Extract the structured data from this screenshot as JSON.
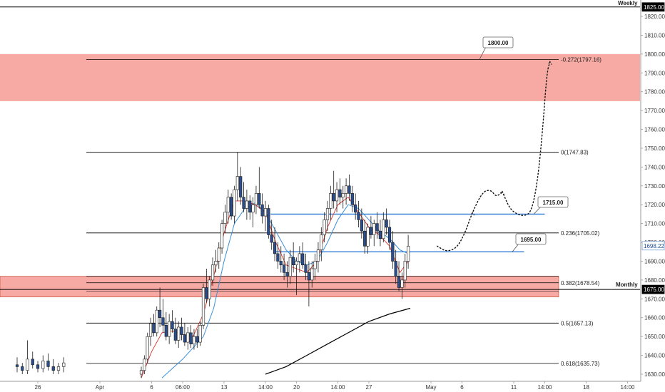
{
  "chart_data": {
    "type": "candlestick",
    "timeframe_labels": {
      "top": "Weekly",
      "middle": "Monthly"
    },
    "y_axis": {
      "ticks": [
        "1820.00",
        "1810.00",
        "1800.00",
        "1790.00",
        "1780.00",
        "1770.00",
        "1760.00",
        "1750.00",
        "1740.00",
        "1730.00",
        "1720.00",
        "1710.00",
        "1700.00",
        "1690.00",
        "1680.00",
        "1670.00",
        "1660.00",
        "1650.00",
        "1640.00",
        "1630.00"
      ],
      "badges": [
        {
          "name": "weekly-price",
          "text": "1825.00",
          "value": 1825,
          "bg": "#000000",
          "fg": "#ffffff"
        },
        {
          "name": "current-price",
          "text": "1698.22",
          "value": 1698.22,
          "bg": "#ffffff",
          "fg": "#1e4f9e",
          "border": "#7ea6d8"
        },
        {
          "name": "monthly-price",
          "text": "1675.00",
          "value": 1675,
          "bg": "#000000",
          "fg": "#ffffff"
        }
      ]
    },
    "x_axis": {
      "ticks": [
        {
          "label": "26",
          "day": -6
        },
        {
          "label": "Apr",
          "day": 0
        },
        {
          "label": "6",
          "day": 5
        },
        {
          "label": "06:00",
          "day": 8
        },
        {
          "label": "13",
          "day": 12
        },
        {
          "label": "14:00",
          "day": 16
        },
        {
          "label": "20",
          "day": 19
        },
        {
          "label": "14:00",
          "day": 23
        },
        {
          "label": "27",
          "day": 26
        },
        {
          "label": "May",
          "day": 32
        },
        {
          "label": "6",
          "day": 35
        },
        {
          "label": "11",
          "day": 40
        },
        {
          "label": "14:00",
          "day": 43
        },
        {
          "label": "18",
          "day": 47
        },
        {
          "label": "14:00",
          "day": 51
        }
      ]
    },
    "zones": [
      {
        "name": "upper-resistance-zone",
        "from": 1775,
        "to": 1800,
        "color": "#f7aaa3"
      },
      {
        "name": "lower-support-zone",
        "from": 1671,
        "to": 1682,
        "color": "#f7aaa3"
      }
    ],
    "levels": [
      {
        "name": "weekly-line",
        "value": 1825,
        "color": "#000000"
      },
      {
        "name": "monthly-line",
        "value": 1675,
        "color": "#000000"
      }
    ],
    "fib_levels": [
      {
        "label": "-0.272(1797.16)",
        "value": 1797.16
      },
      {
        "label": "0(1747.83)",
        "value": 1747.83
      },
      {
        "label": "0.236(1705.02)",
        "value": 1705.02
      },
      {
        "label": "0.382(1678.54)",
        "value": 1678.54
      },
      {
        "label": "0.5(1657.13)",
        "value": 1657.13
      },
      {
        "label": "0.618(1635.73)",
        "value": 1635.73
      }
    ],
    "fib_extra_lines": [
      1682,
      1674
    ],
    "blue_lines": [
      {
        "name": "resistance-1715",
        "value": 1715,
        "label": "1715.00",
        "from_day": 16.5,
        "to_day": 43
      },
      {
        "name": "support-1695",
        "value": 1695,
        "label": "1695.00",
        "from_day": 17,
        "to_day": 41
      }
    ],
    "callouts": [
      {
        "text": "1800.00",
        "value": 1800
      },
      {
        "text": "1715.00",
        "value": 1715
      },
      {
        "text": "1695.00",
        "value": 1695
      }
    ],
    "projection_path": [
      [
        32.6,
        1698
      ],
      [
        33.5,
        1695
      ],
      [
        34.5,
        1697
      ],
      [
        35.3,
        1705
      ],
      [
        36,
        1716
      ],
      [
        37,
        1727
      ],
      [
        37.8,
        1728
      ],
      [
        38.3,
        1724
      ],
      [
        38.9,
        1727
      ]
    ],
    "projection_path2": [
      [
        38.9,
        1727
      ],
      [
        39.6,
        1718
      ],
      [
        40.3,
        1715
      ],
      [
        41,
        1714
      ],
      [
        41.7,
        1716
      ],
      [
        42.3,
        1732
      ],
      [
        42.8,
        1760
      ],
      [
        43.2,
        1790
      ],
      [
        43.5,
        1796
      ]
    ],
    "candles": [
      [
        -8,
        1635,
        1639,
        1631,
        1634
      ],
      [
        -7.5,
        1634,
        1636,
        1630,
        1632
      ],
      [
        -7,
        1632,
        1648,
        1630,
        1638
      ],
      [
        -6.5,
        1638,
        1642,
        1633,
        1635
      ],
      [
        -6,
        1635,
        1637,
        1631,
        1633
      ],
      [
        -5.5,
        1633,
        1640,
        1631,
        1637
      ],
      [
        -5,
        1637,
        1641,
        1632,
        1634
      ],
      [
        -4.5,
        1634,
        1638,
        1630,
        1632
      ],
      [
        -4,
        1632,
        1636,
        1630,
        1634
      ],
      [
        -3.5,
        1634,
        1639,
        1631,
        1636
      ],
      [
        4,
        1630,
        1634,
        1628,
        1632
      ],
      [
        4.3,
        1632,
        1640,
        1630,
        1638
      ],
      [
        4.6,
        1638,
        1652,
        1636,
        1650
      ],
      [
        4.9,
        1650,
        1660,
        1645,
        1657
      ],
      [
        5.2,
        1657,
        1662,
        1650,
        1652
      ],
      [
        5.5,
        1652,
        1666,
        1650,
        1664
      ],
      [
        5.8,
        1664,
        1676,
        1655,
        1660
      ],
      [
        6.1,
        1660,
        1670,
        1652,
        1656
      ],
      [
        6.4,
        1656,
        1663,
        1648,
        1650
      ],
      [
        6.7,
        1650,
        1662,
        1646,
        1658
      ],
      [
        7,
        1658,
        1664,
        1652,
        1654
      ],
      [
        7.3,
        1654,
        1660,
        1646,
        1648
      ],
      [
        7.6,
        1648,
        1658,
        1644,
        1655
      ],
      [
        7.9,
        1655,
        1660,
        1648,
        1651
      ],
      [
        8.2,
        1651,
        1657,
        1645,
        1647
      ],
      [
        8.5,
        1647,
        1655,
        1643,
        1652
      ],
      [
        8.8,
        1652,
        1656,
        1644,
        1646
      ],
      [
        9.1,
        1646,
        1654,
        1643,
        1650
      ],
      [
        9.4,
        1650,
        1654,
        1644,
        1647
      ],
      [
        9.7,
        1647,
        1658,
        1645,
        1656
      ],
      [
        10,
        1656,
        1678,
        1654,
        1676
      ],
      [
        10.3,
        1676,
        1686,
        1668,
        1670
      ],
      [
        10.6,
        1670,
        1682,
        1666,
        1680
      ],
      [
        10.9,
        1680,
        1692,
        1677,
        1688
      ],
      [
        11.2,
        1688,
        1696,
        1684,
        1690
      ],
      [
        11.5,
        1690,
        1700,
        1686,
        1697
      ],
      [
        11.8,
        1697,
        1712,
        1694,
        1710
      ],
      [
        12.1,
        1710,
        1720,
        1705,
        1716
      ],
      [
        12.4,
        1716,
        1728,
        1710,
        1724
      ],
      [
        12.7,
        1724,
        1726,
        1712,
        1714
      ],
      [
        13,
        1714,
        1730,
        1710,
        1728
      ],
      [
        13.3,
        1728,
        1748,
        1722,
        1735
      ],
      [
        13.6,
        1735,
        1740,
        1720,
        1724
      ],
      [
        13.9,
        1724,
        1732,
        1716,
        1718
      ],
      [
        14.2,
        1718,
        1728,
        1712,
        1722
      ],
      [
        14.5,
        1722,
        1725,
        1712,
        1716
      ],
      [
        14.8,
        1716,
        1724,
        1708,
        1720
      ],
      [
        15.1,
        1720,
        1730,
        1715,
        1726
      ],
      [
        15.4,
        1726,
        1740,
        1718,
        1720
      ],
      [
        15.7,
        1720,
        1726,
        1710,
        1714
      ],
      [
        16,
        1714,
        1722,
        1706,
        1718
      ],
      [
        16.3,
        1718,
        1720,
        1702,
        1704
      ],
      [
        16.6,
        1704,
        1712,
        1696,
        1700
      ],
      [
        16.9,
        1700,
        1708,
        1690,
        1694
      ],
      [
        17.2,
        1694,
        1700,
        1686,
        1690
      ],
      [
        17.5,
        1690,
        1698,
        1684,
        1688
      ],
      [
        17.8,
        1688,
        1694,
        1680,
        1684
      ],
      [
        18.1,
        1684,
        1690,
        1676,
        1682
      ],
      [
        18.4,
        1682,
        1696,
        1678,
        1692
      ],
      [
        18.7,
        1692,
        1700,
        1684,
        1688
      ],
      [
        19,
        1688,
        1692,
        1672,
        1690
      ],
      [
        19.3,
        1690,
        1698,
        1684,
        1694
      ],
      [
        19.6,
        1694,
        1700,
        1686,
        1688
      ],
      [
        19.9,
        1688,
        1694,
        1680,
        1684
      ],
      [
        20.2,
        1684,
        1690,
        1666,
        1680
      ],
      [
        20.5,
        1680,
        1690,
        1676,
        1686
      ],
      [
        20.8,
        1686,
        1694,
        1680,
        1690
      ],
      [
        21.1,
        1690,
        1700,
        1684,
        1696
      ],
      [
        21.4,
        1696,
        1708,
        1690,
        1704
      ],
      [
        21.7,
        1704,
        1716,
        1700,
        1712
      ],
      [
        22,
        1712,
        1722,
        1706,
        1718
      ],
      [
        22.3,
        1718,
        1730,
        1712,
        1726
      ],
      [
        22.6,
        1726,
        1738,
        1718,
        1722
      ],
      [
        22.9,
        1722,
        1732,
        1716,
        1728
      ],
      [
        23.2,
        1728,
        1734,
        1720,
        1724
      ],
      [
        23.5,
        1724,
        1730,
        1718,
        1726
      ],
      [
        23.8,
        1726,
        1734,
        1720,
        1730
      ],
      [
        24.1,
        1730,
        1736,
        1722,
        1726
      ],
      [
        24.4,
        1726,
        1730,
        1716,
        1720
      ],
      [
        24.7,
        1720,
        1726,
        1712,
        1716
      ],
      [
        25,
        1716,
        1722,
        1708,
        1712
      ],
      [
        25.3,
        1712,
        1718,
        1702,
        1706
      ],
      [
        25.6,
        1706,
        1712,
        1694,
        1698
      ],
      [
        25.9,
        1698,
        1710,
        1694,
        1708
      ],
      [
        26.2,
        1708,
        1714,
        1702,
        1704
      ],
      [
        26.5,
        1704,
        1712,
        1698,
        1710
      ],
      [
        26.8,
        1710,
        1716,
        1702,
        1706
      ],
      [
        27.1,
        1706,
        1712,
        1698,
        1702
      ],
      [
        27.4,
        1702,
        1716,
        1700,
        1712
      ],
      [
        27.7,
        1712,
        1718,
        1704,
        1708
      ],
      [
        28,
        1708,
        1712,
        1696,
        1700
      ],
      [
        28.3,
        1700,
        1706,
        1686,
        1690
      ],
      [
        28.6,
        1690,
        1696,
        1678,
        1682
      ],
      [
        28.9,
        1682,
        1690,
        1674,
        1676
      ],
      [
        29.2,
        1676,
        1684,
        1670,
        1680
      ],
      [
        29.5,
        1680,
        1694,
        1676,
        1690
      ],
      [
        29.8,
        1690,
        1704,
        1686,
        1698
      ]
    ],
    "ema_fast": [
      [
        4,
        1628
      ],
      [
        5,
        1642
      ],
      [
        6,
        1652
      ],
      [
        7,
        1653
      ],
      [
        8,
        1651
      ],
      [
        9,
        1650
      ],
      [
        10,
        1662
      ],
      [
        11,
        1682
      ],
      [
        12,
        1705
      ],
      [
        13,
        1722
      ],
      [
        14,
        1722
      ],
      [
        15,
        1720
      ],
      [
        16,
        1716
      ],
      [
        17,
        1700
      ],
      [
        18,
        1688
      ],
      [
        19,
        1686
      ],
      [
        20,
        1684
      ],
      [
        21,
        1690
      ],
      [
        22,
        1708
      ],
      [
        23,
        1720
      ],
      [
        24,
        1724
      ],
      [
        25,
        1716
      ],
      [
        26,
        1708
      ],
      [
        27,
        1704
      ],
      [
        28,
        1698
      ],
      [
        29,
        1684
      ],
      [
        29.8,
        1690
      ]
    ],
    "ema_slow": [
      [
        6,
        1628
      ],
      [
        8,
        1638
      ],
      [
        10,
        1650
      ],
      [
        11,
        1665
      ],
      [
        12,
        1690
      ],
      [
        13,
        1710
      ],
      [
        14,
        1718
      ],
      [
        15,
        1721
      ],
      [
        16,
        1716
      ],
      [
        17,
        1706
      ],
      [
        18,
        1696
      ],
      [
        19,
        1690
      ],
      [
        20,
        1688
      ],
      [
        21,
        1690
      ],
      [
        22,
        1700
      ],
      [
        23,
        1712
      ],
      [
        24,
        1720
      ],
      [
        25,
        1718
      ],
      [
        26,
        1712
      ],
      [
        27,
        1706
      ],
      [
        28,
        1702
      ],
      [
        29,
        1696
      ],
      [
        29.8,
        1694
      ]
    ],
    "sma_long": [
      [
        16,
        1630
      ],
      [
        18,
        1634
      ],
      [
        20,
        1640
      ],
      [
        22,
        1646
      ],
      [
        24,
        1652
      ],
      [
        26,
        1658
      ],
      [
        28,
        1662
      ],
      [
        30,
        1665
      ]
    ],
    "colors": {
      "bull": "#ffffff",
      "bear": "#2b4e8f",
      "wick": "#1a1a1a",
      "ema_fast": "#d8352a",
      "ema_slow": "#3d8fd6",
      "sma_long": "#000000",
      "blue_line": "#2f7bd6",
      "fib": "#000000",
      "axis": "#999999"
    }
  }
}
